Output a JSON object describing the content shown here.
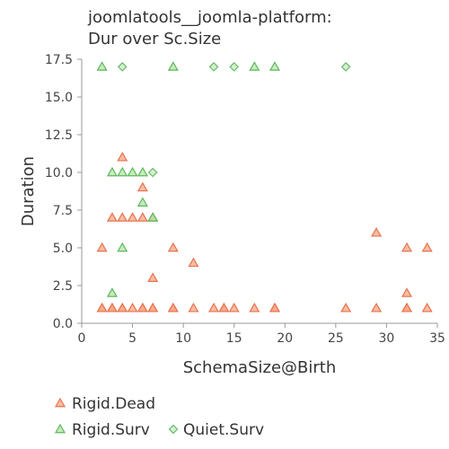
{
  "chart_data": {
    "type": "scatter",
    "title_lines": [
      "joomlatools__joomla-platform:",
      "Dur over Sc.Size"
    ],
    "xlabel": "SchemaSize@Birth",
    "ylabel": "Duration",
    "xlim": [
      0,
      35
    ],
    "ylim": [
      0,
      17.5
    ],
    "xticks": [
      0,
      5,
      10,
      15,
      20,
      25,
      30,
      35
    ],
    "yticks": [
      0.0,
      2.5,
      5.0,
      7.5,
      10.0,
      12.5,
      15.0,
      17.5
    ],
    "ytick_labels": [
      "0.0",
      "2.5",
      "5.0",
      "7.5",
      "10.0",
      "12.5",
      "15.0",
      "17.5"
    ],
    "grid": false,
    "legend_position": "bottom",
    "series": [
      {
        "name": "Rigid.Dead",
        "marker": "triangle",
        "fill": "#f4a582",
        "stroke": "#e7734f",
        "points": [
          [
            2,
            1
          ],
          [
            3,
            1
          ],
          [
            4,
            1
          ],
          [
            5,
            1
          ],
          [
            6,
            1
          ],
          [
            7,
            1
          ],
          [
            9,
            1
          ],
          [
            11,
            1
          ],
          [
            13,
            1
          ],
          [
            14,
            1
          ],
          [
            15,
            1
          ],
          [
            17,
            1
          ],
          [
            19,
            1
          ],
          [
            26,
            1
          ],
          [
            29,
            1
          ],
          [
            32,
            1
          ],
          [
            34,
            1
          ],
          [
            2,
            1
          ],
          [
            3,
            1
          ],
          [
            3,
            1
          ],
          [
            4,
            1
          ],
          [
            6,
            1
          ],
          [
            7,
            1
          ],
          [
            9,
            1
          ],
          [
            14,
            1
          ],
          [
            19,
            1
          ],
          [
            32,
            1
          ],
          [
            2,
            5
          ],
          [
            3,
            7
          ],
          [
            4,
            7
          ],
          [
            5,
            7
          ],
          [
            6,
            7
          ],
          [
            7,
            7
          ],
          [
            4,
            11
          ],
          [
            6,
            9
          ],
          [
            9,
            5
          ],
          [
            11,
            4
          ],
          [
            7,
            3
          ],
          [
            32,
            2
          ],
          [
            29,
            6
          ],
          [
            32,
            5
          ],
          [
            34,
            5
          ]
        ]
      },
      {
        "name": "Rigid.Surv",
        "marker": "triangle",
        "fill": "#b6e3a6",
        "stroke": "#5cb85c",
        "points": [
          [
            2,
            17
          ],
          [
            3,
            10
          ],
          [
            4,
            10
          ],
          [
            5,
            10
          ],
          [
            6,
            10
          ],
          [
            6,
            8
          ],
          [
            7,
            7
          ],
          [
            3,
            2
          ],
          [
            4,
            5
          ],
          [
            9,
            17
          ],
          [
            17,
            17
          ],
          [
            19,
            17
          ]
        ]
      },
      {
        "name": "Quiet.Surv",
        "marker": "diamond",
        "fill": "#c7e9c0",
        "stroke": "#66bb6a",
        "points": [
          [
            4,
            17
          ],
          [
            13,
            17
          ],
          [
            15,
            17
          ],
          [
            26,
            17
          ],
          [
            7,
            10
          ]
        ]
      }
    ]
  }
}
